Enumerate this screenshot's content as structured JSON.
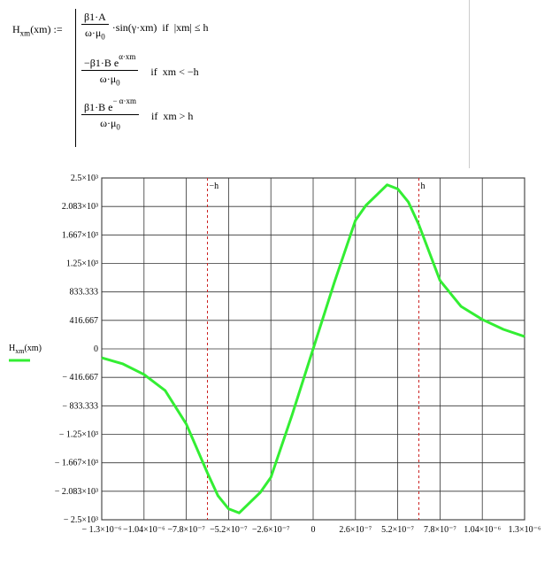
{
  "formula": {
    "lhs_base": "H",
    "lhs_sub": "xm",
    "lhs_rest": "(xm) :=",
    "cases": [
      {
        "num": "β1·A",
        "num_sup": "",
        "den": "ω·μ",
        "den_sub": "0",
        "tail": "·sin(γ·xm)  if  |xm| ≤ h"
      },
      {
        "num": "−β1·B e",
        "num_sup": "α·xm",
        "den": "ω·μ",
        "den_sub": "0",
        "tail": "if  xm < −h"
      },
      {
        "num": "β1·B e",
        "num_sup": "− α·xm",
        "den": "ω·μ",
        "den_sub": "0",
        "tail": "if  xm > h"
      }
    ]
  },
  "chart_data": {
    "type": "line",
    "y_label": {
      "base": "H",
      "sub": "xm",
      "rest": "(xm)"
    },
    "x": [
      -1.3e-06,
      -1.17e-06,
      -1.04e-06,
      -9.1e-07,
      -7.8e-07,
      -6.5e-07,
      -5.85e-07,
      -5.2e-07,
      -4.55e-07,
      -3.9e-07,
      -3.25e-07,
      -2.6e-07,
      -1.3e-07,
      0,
      1.3e-07,
      2.6e-07,
      3.25e-07,
      3.9e-07,
      4.55e-07,
      5.2e-07,
      5.85e-07,
      6.5e-07,
      7.8e-07,
      9.1e-07,
      1.04e-06,
      1.17e-06,
      1.3e-06
    ],
    "series": [
      {
        "name": "Hxm(xm)",
        "color": "#33ee33",
        "values": [
          -130,
          -220,
          -375,
          -610,
          -1100,
          -1815,
          -2150,
          -2340,
          -2400,
          -2250,
          -2100,
          -1880,
          -970,
          0,
          970,
          1880,
          2100,
          2250,
          2400,
          2340,
          2150,
          1815,
          1000,
          620,
          430,
          285,
          180
        ]
      }
    ],
    "xlim": [
      -1.3e-06,
      1.3e-06
    ],
    "xticks": [
      {
        "value": -1.3e-06,
        "label": "− 1.3×10⁻⁶"
      },
      {
        "value": -1.04e-06,
        "label": "−1.04×10⁻⁶"
      },
      {
        "value": -7.8e-07,
        "label": "−7.8×10⁻⁷"
      },
      {
        "value": -5.2e-07,
        "label": "−5.2×10⁻⁷"
      },
      {
        "value": -2.6e-07,
        "label": "−2.6×10⁻⁷"
      },
      0,
      {
        "value": 2.6e-07,
        "label": "2.6×10⁻⁷"
      },
      {
        "value": 5.2e-07,
        "label": "5.2×10⁻⁷"
      },
      {
        "value": 7.8e-07,
        "label": "7.8×10⁻⁷"
      },
      {
        "value": 1.04e-06,
        "label": "1.04×10⁻⁶"
      },
      {
        "value": 1.3e-06,
        "label": "1.3×10⁻⁶"
      }
    ],
    "ylim": [
      -2500,
      2500
    ],
    "yticks": [
      {
        "value": 2500,
        "label": "2.5×10³"
      },
      {
        "value": 2083.333,
        "label": "2.083×10³"
      },
      {
        "value": 1666.667,
        "label": "1.667×10³"
      },
      {
        "value": 1250,
        "label": "1.25×10³"
      },
      833.333,
      416.667,
      0,
      {
        "value": -416.667,
        "label": "− 416.667"
      },
      {
        "value": -833.333,
        "label": "− 833.333"
      },
      {
        "value": -1250,
        "label": "− 1.25×10³"
      },
      {
        "value": -1666.667,
        "label": "− 1.667×10³"
      },
      {
        "value": -2083.333,
        "label": "− 2.083×10³"
      },
      {
        "value": -2500,
        "label": "− 2.5×10³"
      }
    ],
    "grid": true,
    "markers": [
      {
        "x": -6.5e-07,
        "label": "−h",
        "color": "#cc2222"
      },
      {
        "x": 6.5e-07,
        "label": "h",
        "color": "#cc2222"
      }
    ]
  }
}
